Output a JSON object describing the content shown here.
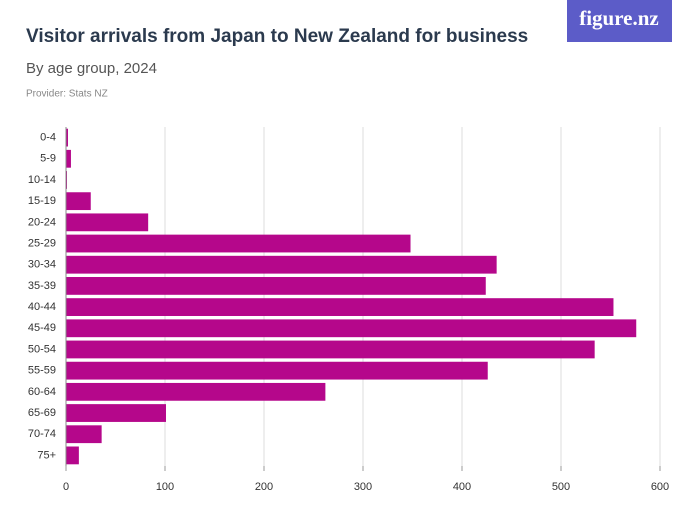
{
  "logo": "figure.nz",
  "chart_data": {
    "type": "bar",
    "orientation": "horizontal",
    "title": "Visitor arrivals from Japan to New Zealand for business",
    "subtitle": "By age group, 2024",
    "source": "Provider: Stats NZ",
    "categories": [
      "0-4",
      "5-9",
      "10-14",
      "15-19",
      "20-24",
      "25-29",
      "30-34",
      "35-39",
      "40-44",
      "45-49",
      "50-54",
      "55-59",
      "60-64",
      "65-69",
      "70-74",
      "75+"
    ],
    "values": [
      2,
      5,
      1,
      25,
      83,
      348,
      435,
      424,
      553,
      576,
      534,
      426,
      262,
      101,
      36,
      13
    ],
    "color": "#b5078b",
    "xlim": [
      0,
      600
    ],
    "xticks": [
      0,
      100,
      200,
      300,
      400,
      500,
      600
    ],
    "grid": true
  }
}
